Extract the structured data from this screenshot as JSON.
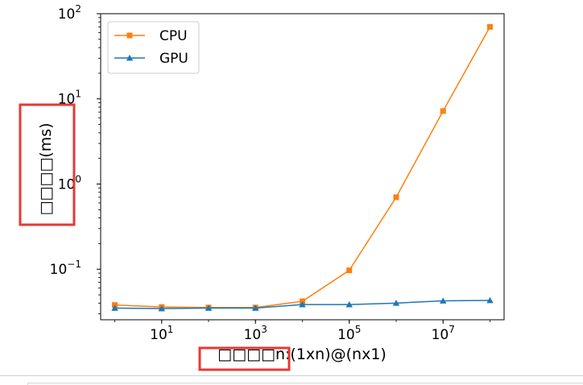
{
  "chart_data": {
    "type": "line",
    "xscale": "log",
    "yscale": "log",
    "xlim": [
      0.5,
      200000000
    ],
    "ylim": [
      0.0255,
      100
    ],
    "xticks": [
      {
        "value": 10,
        "label_base": "10",
        "label_exp": "1"
      },
      {
        "value": 1000,
        "label_base": "10",
        "label_exp": "3"
      },
      {
        "value": 100000,
        "label_base": "10",
        "label_exp": "5"
      },
      {
        "value": 10000000,
        "label_base": "10",
        "label_exp": "7"
      }
    ],
    "yticks": [
      {
        "value": 0.1,
        "label_base": "10",
        "label_exp": "−1"
      },
      {
        "value": 1,
        "label_base": "10",
        "label_exp": "0"
      },
      {
        "value": 10,
        "label_base": "10",
        "label_exp": "1"
      },
      {
        "value": 100,
        "label_base": "10",
        "label_exp": "2"
      }
    ],
    "xlabel": "□□□□n:(1xn)@(nx1)",
    "ylabel": "□□□□(ms)",
    "legend_position": "upper-left",
    "x": [
      1,
      10,
      100,
      1000,
      10000,
      100000,
      1000000,
      10000000,
      100000000
    ],
    "series": [
      {
        "name": "CPU",
        "color": "#ff7f0e",
        "marker": "square",
        "values": [
          0.038,
          0.036,
          0.0355,
          0.0355,
          0.042,
          0.097,
          0.7,
          7.2,
          70
        ]
      },
      {
        "name": "GPU",
        "color": "#1f77b4",
        "marker": "triangle",
        "values": [
          0.035,
          0.0345,
          0.035,
          0.035,
          0.0385,
          0.0385,
          0.04,
          0.0425,
          0.043
        ]
      }
    ]
  },
  "highlight_color": "#e53935"
}
